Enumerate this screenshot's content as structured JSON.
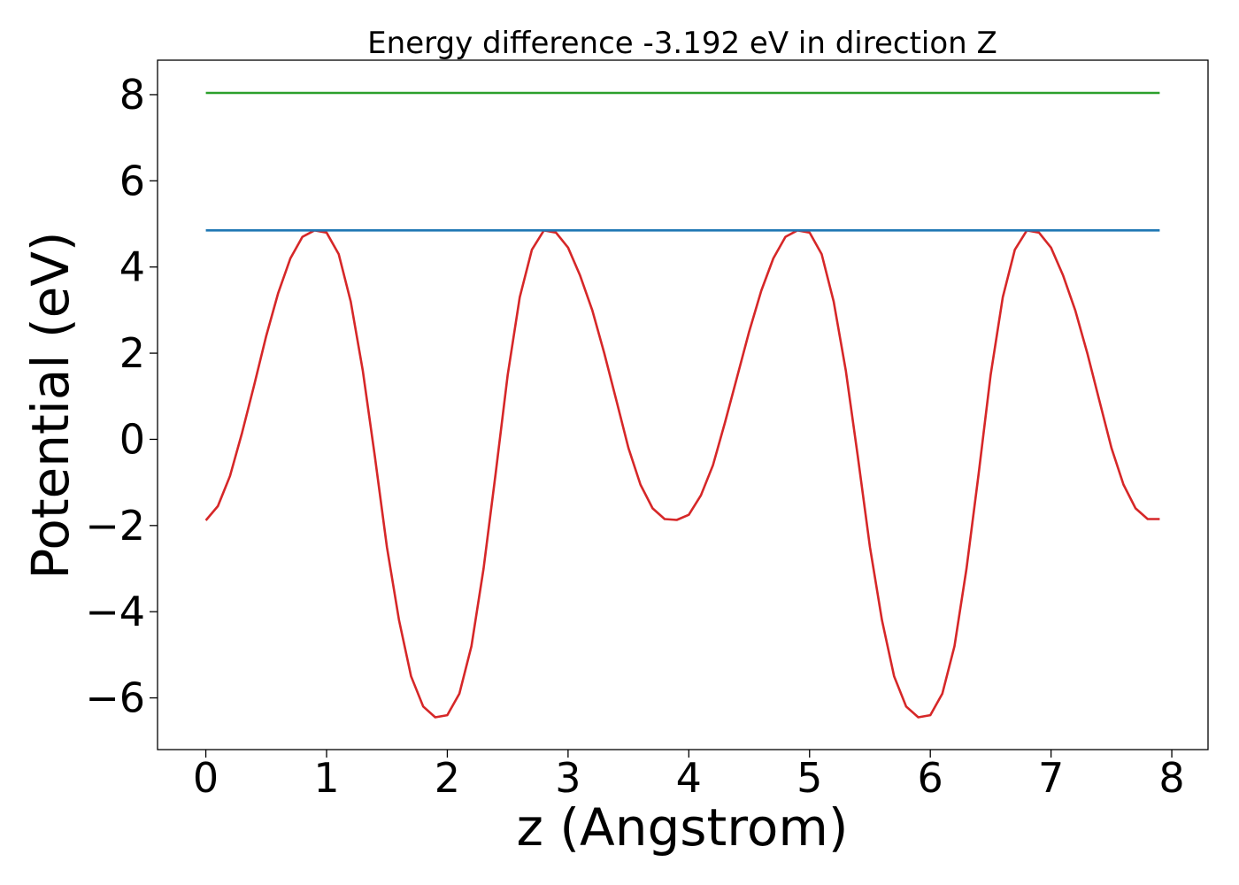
{
  "chart_data": {
    "type": "line",
    "title": "Energy difference -3.192 eV in direction Z",
    "xlabel": "z (Angstrom)",
    "ylabel": "Potential (eV)",
    "xlim": [
      -0.4,
      8.3
    ],
    "ylim": [
      -7.2,
      8.8
    ],
    "xticks": [
      0,
      1,
      2,
      3,
      4,
      5,
      6,
      7,
      8
    ],
    "xtick_labels": [
      "0",
      "1",
      "2",
      "3",
      "4",
      "5",
      "6",
      "7",
      "8"
    ],
    "yticks": [
      -6,
      -4,
      -2,
      0,
      2,
      4,
      6,
      8
    ],
    "ytick_labels": [
      "−6",
      "−4",
      "−2",
      "0",
      "2",
      "4",
      "6",
      "8"
    ],
    "grid": false,
    "series": [
      {
        "color": "#d62728",
        "x": [
          0.0,
          0.1,
          0.2,
          0.3,
          0.4,
          0.5,
          0.6,
          0.7,
          0.8,
          0.9,
          1.0,
          1.1,
          1.2,
          1.3,
          1.4,
          1.5,
          1.6,
          1.7,
          1.8,
          1.9,
          2.0,
          2.1,
          2.2,
          2.3,
          2.4,
          2.5,
          2.6,
          2.7,
          2.8,
          2.9,
          3.0,
          3.1,
          3.2,
          3.3,
          3.4,
          3.5,
          3.6,
          3.7,
          3.8,
          3.9,
          4.0,
          4.1,
          4.2,
          4.3,
          4.4,
          4.5,
          4.6,
          4.7,
          4.8,
          4.9,
          5.0,
          5.1,
          5.2,
          5.3,
          5.4,
          5.5,
          5.6,
          5.7,
          5.8,
          5.9,
          6.0,
          6.1,
          6.2,
          6.3,
          6.4,
          6.5,
          6.6,
          6.7,
          6.8,
          6.9,
          7.0,
          7.1,
          7.2,
          7.3,
          7.4,
          7.5,
          7.6,
          7.7,
          7.8,
          7.9
        ],
        "y": [
          -1.88,
          -1.55,
          -0.85,
          0.15,
          1.25,
          2.4,
          3.4,
          4.2,
          4.7,
          4.85,
          4.8,
          4.3,
          3.2,
          1.6,
          -0.4,
          -2.5,
          -4.2,
          -5.5,
          -6.2,
          -6.45,
          -6.4,
          -5.9,
          -4.8,
          -3.0,
          -0.8,
          1.5,
          3.3,
          4.4,
          4.85,
          4.8,
          4.45,
          3.8,
          3.0,
          2.0,
          0.9,
          -0.2,
          -1.05,
          -1.6,
          -1.85,
          -1.87,
          -1.75,
          -1.3,
          -0.6,
          0.4,
          1.45,
          2.5,
          3.45,
          4.2,
          4.7,
          4.85,
          4.8,
          4.3,
          3.2,
          1.6,
          -0.4,
          -2.5,
          -4.2,
          -5.5,
          -6.2,
          -6.45,
          -6.4,
          -5.9,
          -4.8,
          -3.0,
          -0.8,
          1.5,
          3.3,
          4.4,
          4.85,
          4.8,
          4.45,
          3.8,
          3.0,
          2.0,
          0.9,
          -0.2,
          -1.05,
          -1.6,
          -1.85,
          -1.85
        ]
      },
      {
        "color": "#1f77b4",
        "x": [
          0.0,
          7.9
        ],
        "y": [
          4.85,
          4.85
        ]
      },
      {
        "color": "#2ca02c",
        "x": [
          0.0,
          7.9
        ],
        "y": [
          8.04,
          8.04
        ]
      }
    ]
  }
}
